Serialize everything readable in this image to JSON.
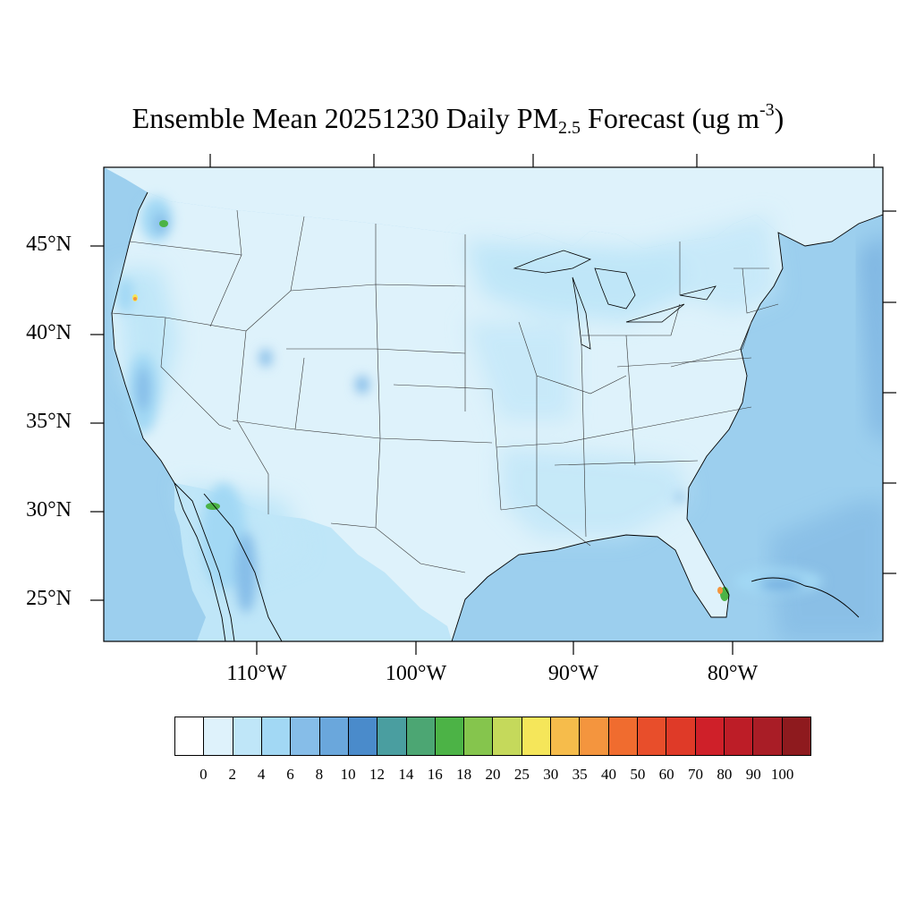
{
  "title": {
    "main": "Ensemble Mean 20251230 Daily PM",
    "sub": "2.5",
    "rest": " Forecast (ug m",
    "sup": "-3",
    "close": ")"
  },
  "lat_labels": [
    "45°N",
    "40°N",
    "35°N",
    "30°N",
    "25°N"
  ],
  "lon_labels": [
    "110°W",
    "100°W",
    "90°W",
    "80°W"
  ],
  "legend": {
    "colors": [
      "#ffffff",
      "#def2fb",
      "#bfe6f8",
      "#a2d8f4",
      "#86bde8",
      "#6aa7dc",
      "#4a8bcb",
      "#4a9ea0",
      "#4ca673",
      "#4cb346",
      "#85c54d",
      "#c5d95b",
      "#f5e65a",
      "#f6bc4b",
      "#f4953e",
      "#f06c2f",
      "#e84e2b",
      "#df3a28",
      "#cf2029",
      "#bd1d27",
      "#a91d26",
      "#8e1a1e"
    ],
    "labels": [
      "0",
      "2",
      "4",
      "6",
      "8",
      "10",
      "12",
      "14",
      "16",
      "18",
      "20",
      "25",
      "30",
      "35",
      "40",
      "50",
      "60",
      "70",
      "80",
      "90",
      "100"
    ]
  },
  "map_colors": {
    "ocean": "#9ccfee",
    "deep_ocean": "#7fb6e2",
    "land_light": "#def2fb",
    "land_mid": "#bfe6f8",
    "land_hi": "#a2d8f4",
    "hot_mid": "#86bde8",
    "hot_hi": "#6aa7dc",
    "green": "#4cb346",
    "yellow": "#f5e65a",
    "orange": "#f4953e"
  }
}
